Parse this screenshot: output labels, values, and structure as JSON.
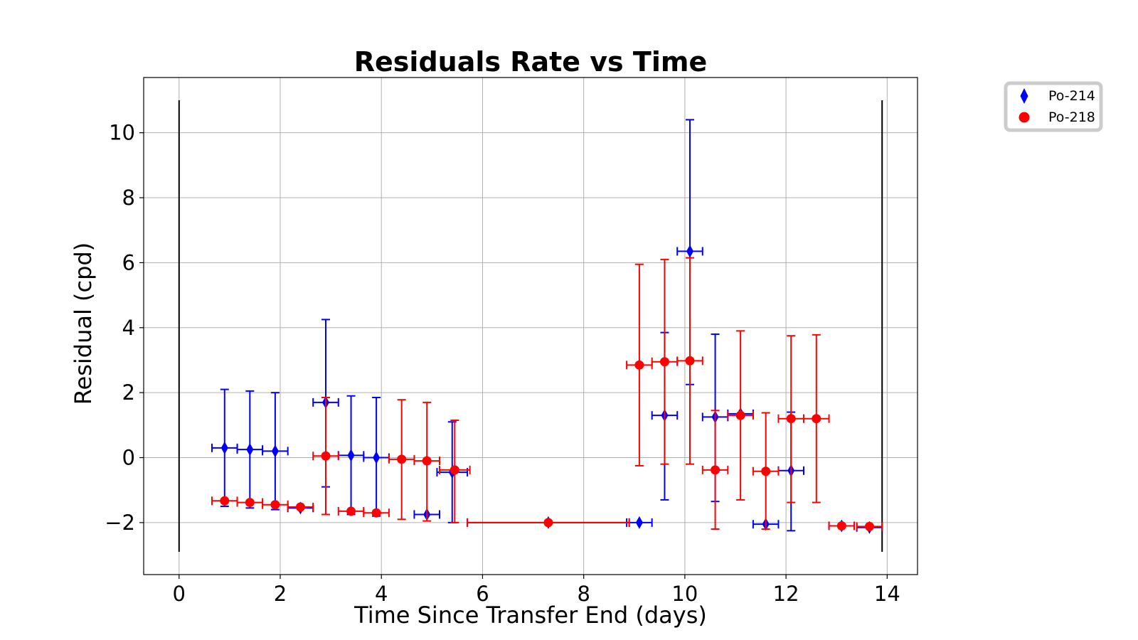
{
  "chart_data": {
    "type": "scatter",
    "title": "Residuals Rate vs Time",
    "xlabel": "Time Since Transfer End (days)",
    "ylabel": "Residual (cpd)",
    "xlim": [
      -0.7,
      14.6
    ],
    "ylim": [
      -3.6,
      11.7
    ],
    "xticks": [
      0,
      2,
      4,
      6,
      8,
      10,
      12,
      14
    ],
    "yticks": [
      -2,
      0,
      2,
      4,
      6,
      8,
      10
    ],
    "xtick_labels": [
      "0",
      "2",
      "4",
      "6",
      "8",
      "10",
      "12",
      "14"
    ],
    "ytick_labels": [
      "−2",
      "0",
      "2",
      "4",
      "6",
      "8",
      "10"
    ],
    "grid": true,
    "legend_position": "outside-top-right",
    "vertical_lines": [
      {
        "x": 0,
        "y_range": [
          -2.9,
          11.0
        ],
        "color": "#000000"
      },
      {
        "x": 13.9,
        "y_range": [
          -2.9,
          11.0
        ],
        "color": "#000000"
      }
    ],
    "series": [
      {
        "name": "Po-214",
        "color": "#0000ff",
        "marker": "diamond",
        "points": [
          {
            "x": 0.9,
            "y": 0.3,
            "xerr": 0.25,
            "ylo": -1.5,
            "yhi": 2.1
          },
          {
            "x": 1.4,
            "y": 0.25,
            "xerr": 0.25,
            "ylo": -1.55,
            "yhi": 2.05
          },
          {
            "x": 1.9,
            "y": 0.2,
            "xerr": 0.25,
            "ylo": -1.6,
            "yhi": 2.0
          },
          {
            "x": 2.4,
            "y": -1.55,
            "xerr": 0.25,
            "ylo": -1.55,
            "yhi": -1.55
          },
          {
            "x": 2.9,
            "y": 1.7,
            "xerr": 0.25,
            "ylo": -0.9,
            "yhi": 4.25
          },
          {
            "x": 3.4,
            "y": 0.07,
            "xerr": 0.25,
            "ylo": -1.75,
            "yhi": 1.9
          },
          {
            "x": 3.9,
            "y": 0.0,
            "xerr": 0.25,
            "ylo": -1.8,
            "yhi": 1.85
          },
          {
            "x": 4.9,
            "y": -1.75,
            "xerr": 0.25,
            "ylo": -1.75,
            "yhi": -1.75
          },
          {
            "x": 5.4,
            "y": -0.45,
            "xerr": 0.3,
            "ylo": -2.0,
            "yhi": 1.1
          },
          {
            "x": 7.3,
            "y": -2.0,
            "xerr": 1.6,
            "ylo": -2.0,
            "yhi": -2.0
          },
          {
            "x": 9.1,
            "y": -2.0,
            "xerr": 0.25,
            "ylo": -2.0,
            "yhi": -2.0
          },
          {
            "x": 9.6,
            "y": 1.3,
            "xerr": 0.25,
            "ylo": -1.3,
            "yhi": 3.85
          },
          {
            "x": 10.1,
            "y": 6.35,
            "xerr": 0.25,
            "ylo": 2.25,
            "yhi": 10.4
          },
          {
            "x": 10.6,
            "y": 1.25,
            "xerr": 0.25,
            "ylo": -1.35,
            "yhi": 3.8
          },
          {
            "x": 11.1,
            "y": 1.35,
            "xerr": 0.25,
            "ylo": 1.35,
            "yhi": 1.35
          },
          {
            "x": 11.6,
            "y": -2.05,
            "xerr": 0.25,
            "ylo": -2.05,
            "yhi": -2.05
          },
          {
            "x": 12.1,
            "y": -0.4,
            "xerr": 0.25,
            "ylo": -2.25,
            "yhi": 1.4
          },
          {
            "x": 13.1,
            "y": -2.1,
            "xerr": 0.25,
            "ylo": -2.1,
            "yhi": -2.1
          },
          {
            "x": 13.65,
            "y": -2.15,
            "xerr": 0.25,
            "ylo": -2.15,
            "yhi": -2.15
          }
        ]
      },
      {
        "name": "Po-218",
        "color": "#ff0000",
        "marker": "circle",
        "points": [
          {
            "x": 0.9,
            "y": -1.33,
            "xerr": 0.25,
            "ylo": -1.33,
            "yhi": -1.33
          },
          {
            "x": 1.4,
            "y": -1.38,
            "xerr": 0.25,
            "ylo": -1.38,
            "yhi": -1.38
          },
          {
            "x": 1.9,
            "y": -1.45,
            "xerr": 0.25,
            "ylo": -1.45,
            "yhi": -1.45
          },
          {
            "x": 2.4,
            "y": -1.52,
            "xerr": 0.25,
            "ylo": -1.52,
            "yhi": -1.52
          },
          {
            "x": 2.9,
            "y": 0.05,
            "xerr": 0.25,
            "ylo": -1.75,
            "yhi": 1.85
          },
          {
            "x": 3.4,
            "y": -1.65,
            "xerr": 0.25,
            "ylo": -1.65,
            "yhi": -1.65
          },
          {
            "x": 3.9,
            "y": -1.7,
            "xerr": 0.25,
            "ylo": -1.7,
            "yhi": -1.7
          },
          {
            "x": 4.4,
            "y": -0.05,
            "xerr": 0.25,
            "ylo": -1.9,
            "yhi": 1.78
          },
          {
            "x": 4.9,
            "y": -0.1,
            "xerr": 0.25,
            "ylo": -1.95,
            "yhi": 1.7
          },
          {
            "x": 5.45,
            "y": -0.38,
            "xerr": 0.3,
            "ylo": -2.0,
            "yhi": 1.15
          },
          {
            "x": 7.3,
            "y": -2.0,
            "xerr": 1.6,
            "ylo": -2.0,
            "yhi": -2.0
          },
          {
            "x": 9.1,
            "y": 2.85,
            "xerr": 0.25,
            "ylo": -0.25,
            "yhi": 5.95
          },
          {
            "x": 9.6,
            "y": 2.95,
            "xerr": 0.25,
            "ylo": -0.2,
            "yhi": 6.1
          },
          {
            "x": 10.1,
            "y": 2.98,
            "xerr": 0.25,
            "ylo": -0.2,
            "yhi": 6.15
          },
          {
            "x": 10.6,
            "y": -0.38,
            "xerr": 0.25,
            "ylo": -2.2,
            "yhi": 1.45
          },
          {
            "x": 11.1,
            "y": 1.3,
            "xerr": 0.25,
            "ylo": -1.3,
            "yhi": 3.9
          },
          {
            "x": 11.6,
            "y": -0.42,
            "xerr": 0.25,
            "ylo": -2.2,
            "yhi": 1.38
          },
          {
            "x": 12.1,
            "y": 1.2,
            "xerr": 0.25,
            "ylo": -1.38,
            "yhi": 3.75
          },
          {
            "x": 12.6,
            "y": 1.2,
            "xerr": 0.25,
            "ylo": -1.38,
            "yhi": 3.78
          },
          {
            "x": 13.1,
            "y": -2.1,
            "xerr": 0.25,
            "ylo": -2.1,
            "yhi": -2.1
          },
          {
            "x": 13.65,
            "y": -2.12,
            "xerr": 0.25,
            "ylo": -2.12,
            "yhi": -2.12
          }
        ]
      }
    ]
  }
}
